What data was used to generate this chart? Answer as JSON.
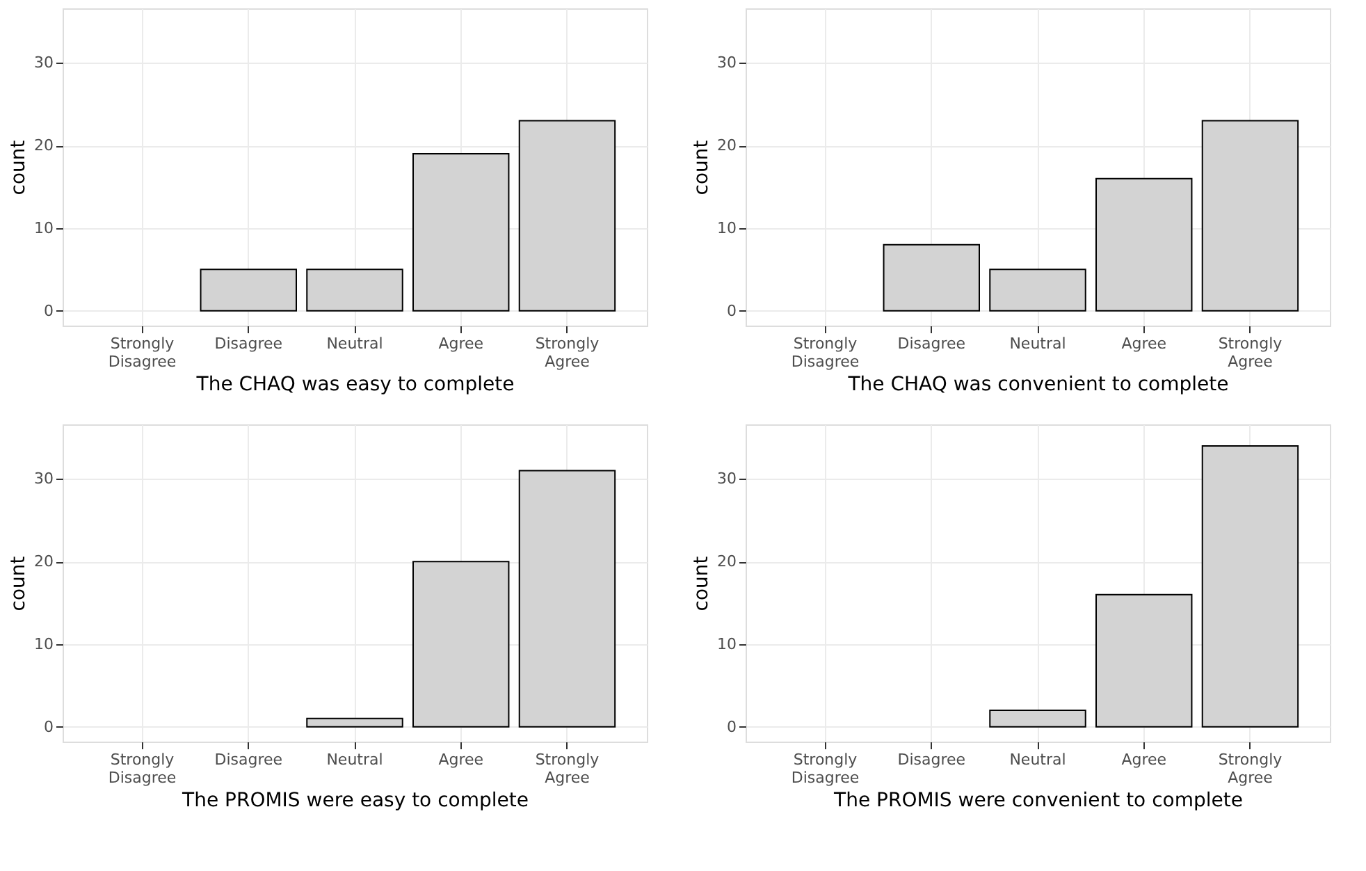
{
  "chart_data": [
    {
      "type": "bar",
      "xlabel": "The CHAQ was easy to complete",
      "ylabel": "count",
      "categories": [
        "Strongly Disagree",
        "Disagree",
        "Neutral",
        "Agree",
        "Strongly Agree"
      ],
      "values": [
        null,
        5,
        5,
        19,
        23
      ],
      "color": "#d3d3d3",
      "ylim": [
        -1.8,
        36.6
      ],
      "yticks": [
        0,
        10,
        20,
        30
      ],
      "grid": true
    },
    {
      "type": "bar",
      "xlabel": "The CHAQ was convenient to complete",
      "ylabel": "count",
      "categories": [
        "Strongly Disagree",
        "Disagree",
        "Neutral",
        "Agree",
        "Strongly Agree"
      ],
      "values": [
        null,
        8,
        5,
        16,
        23
      ],
      "color": "#d3d3d3",
      "ylim": [
        -1.8,
        36.6
      ],
      "yticks": [
        0,
        10,
        20,
        30
      ],
      "grid": true
    },
    {
      "type": "bar",
      "xlabel": "The PROMIS were easy to complete",
      "ylabel": "count",
      "categories": [
        "Strongly Disagree",
        "Disagree",
        "Neutral",
        "Agree",
        "Strongly Agree"
      ],
      "values": [
        null,
        null,
        1,
        20,
        31
      ],
      "color": "#d3d3d3",
      "ylim": [
        -1.8,
        36.6
      ],
      "yticks": [
        0,
        10,
        20,
        30
      ],
      "grid": true
    },
    {
      "type": "bar",
      "xlabel": "The PROMIS were convenient to complete",
      "ylabel": "count",
      "categories": [
        "Strongly Disagree",
        "Disagree",
        "Neutral",
        "Agree",
        "Strongly Agree"
      ],
      "values": [
        null,
        null,
        2,
        16,
        34
      ],
      "color": "#d3d3d3",
      "ylim": [
        -1.8,
        36.6
      ],
      "yticks": [
        0,
        10,
        20,
        30
      ],
      "grid": true
    }
  ]
}
